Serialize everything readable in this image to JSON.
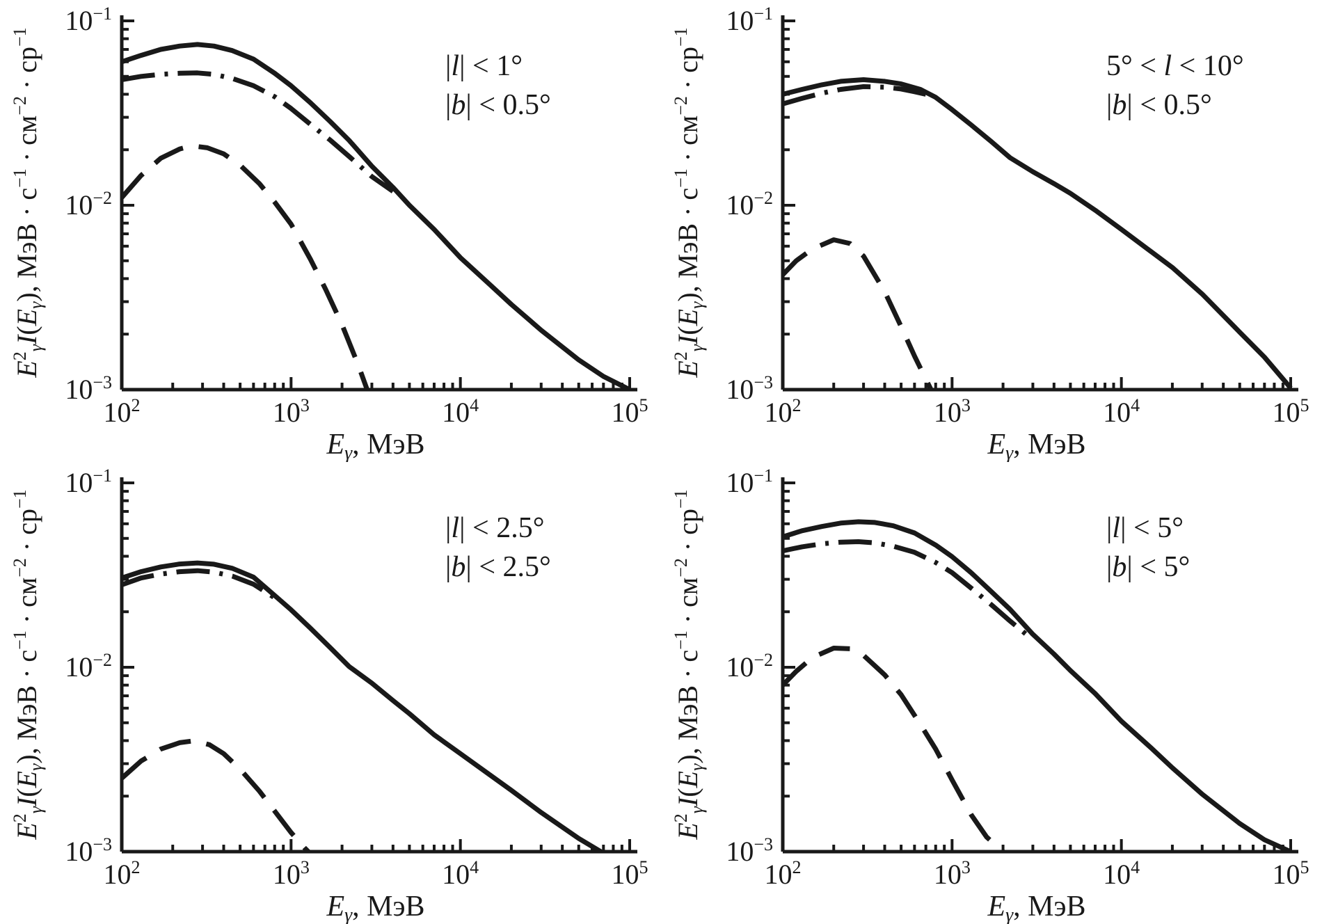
{
  "figure": {
    "background": "#ffffff",
    "line_color": "#191919",
    "xlabel_text": "Eγ, МэВ",
    "ylabel_text": "Eγ²I(Eγ), МэВ · с⁻¹ · см⁻² · ср⁻¹",
    "xlabel_segments": [
      {
        "t": "E",
        "i": true
      },
      {
        "t": "γ",
        "i": true,
        "p": "sub"
      },
      {
        "t": ", МэВ"
      }
    ],
    "ylabel_segments": [
      {
        "t": "E",
        "i": true
      },
      {
        "t": "2",
        "p": "sup"
      },
      {
        "t": "γ",
        "i": true,
        "p": "sub"
      },
      {
        "t": "I",
        "i": true
      },
      {
        "t": "("
      },
      {
        "t": "E",
        "i": true
      },
      {
        "t": "γ",
        "i": true,
        "p": "sub"
      },
      {
        "t": "), МэВ · с"
      },
      {
        "t": "−1",
        "p": "sup"
      },
      {
        "t": " · см"
      },
      {
        "t": "−2",
        "p": "sup"
      },
      {
        "t": " · ср"
      },
      {
        "t": "−1",
        "p": "sup"
      }
    ],
    "x_ticks": [
      {
        "v": 100,
        "label_text": "10²",
        "label": [
          {
            "t": "10"
          },
          {
            "t": "2",
            "p": "sup"
          }
        ]
      },
      {
        "v": 1000,
        "label_text": "10³",
        "label": [
          {
            "t": "10"
          },
          {
            "t": "3",
            "p": "sup"
          }
        ]
      },
      {
        "v": 10000,
        "label_text": "10⁴",
        "label": [
          {
            "t": "10"
          },
          {
            "t": "4",
            "p": "sup"
          }
        ]
      },
      {
        "v": 100000,
        "label_text": "10⁵",
        "label": [
          {
            "t": "10"
          },
          {
            "t": "5",
            "p": "sup"
          }
        ]
      }
    ],
    "y_ticks": [
      {
        "v": 0.1,
        "label_text": "10⁻¹",
        "label": [
          {
            "t": "10"
          },
          {
            "t": "−1",
            "p": "sup"
          }
        ]
      },
      {
        "v": 0.01,
        "label_text": "10⁻²",
        "label": [
          {
            "t": "10"
          },
          {
            "t": "−2",
            "p": "sup"
          }
        ]
      },
      {
        "v": 0.001,
        "label_text": "10⁻³",
        "label": [
          {
            "t": "10"
          },
          {
            "t": "−3",
            "p": "sup"
          }
        ]
      }
    ]
  },
  "chart_data": [
    {
      "type": "line",
      "position": "top-left",
      "xscale": "log",
      "yscale": "log",
      "xlim": [
        100,
        100000
      ],
      "ylim": [
        0.001,
        0.1
      ],
      "xlabel": "Eγ, МэВ",
      "ylabel": "Eγ²I(Eγ), МэВ · с⁻¹ · см⁻² · ср⁻¹",
      "annotation_lines": [
        "|l| < 1°",
        "|b| < 0.5°"
      ],
      "annotation_segments": [
        [
          {
            "t": "|"
          },
          {
            "t": "l",
            "i": true
          },
          {
            "t": "| < 1°"
          }
        ],
        [
          {
            "t": "|"
          },
          {
            "t": "b",
            "i": true
          },
          {
            "t": "| < 0.5°"
          }
        ]
      ],
      "series": [
        {
          "name": "solid curve",
          "style": "solid",
          "x": [
            100,
            130,
            170,
            220,
            280,
            350,
            450,
            600,
            800,
            1000,
            1300,
            1700,
            2200,
            3000,
            4000,
            5000,
            7000,
            10000,
            15000,
            20000,
            30000,
            50000,
            70000,
            100000
          ],
          "y": [
            0.06,
            0.065,
            0.07,
            0.073,
            0.0745,
            0.073,
            0.069,
            0.062,
            0.052,
            0.0445,
            0.036,
            0.0285,
            0.0225,
            0.0163,
            0.0125,
            0.01,
            0.0074,
            0.0052,
            0.0037,
            0.0029,
            0.0021,
            0.00145,
            0.00118,
            0.001
          ]
        },
        {
          "name": "dash-dot curve",
          "style": "dash-dot",
          "x": [
            100,
            130,
            170,
            220,
            280,
            350,
            450,
            600,
            800,
            1000,
            1300,
            1700,
            2200,
            3000,
            4000
          ],
          "y": [
            0.048,
            0.05,
            0.0513,
            0.052,
            0.0522,
            0.0513,
            0.0487,
            0.0445,
            0.0388,
            0.0335,
            0.0275,
            0.0226,
            0.0184,
            0.0143,
            0.0119
          ]
        },
        {
          "name": "dashed curve",
          "style": "dashed",
          "x": [
            100,
            130,
            170,
            220,
            260,
            320,
            400,
            500,
            650,
            800,
            1000,
            1300,
            1600,
            2000,
            2500,
            3000
          ],
          "y": [
            0.011,
            0.0145,
            0.018,
            0.0202,
            0.021,
            0.0205,
            0.019,
            0.0165,
            0.0131,
            0.0104,
            0.0079,
            0.0051,
            0.0035,
            0.00225,
            0.00135,
            0.00085
          ]
        }
      ]
    },
    {
      "type": "line",
      "position": "top-right",
      "xscale": "log",
      "yscale": "log",
      "xlim": [
        100,
        100000
      ],
      "ylim": [
        0.001,
        0.1
      ],
      "xlabel": "Eγ, МэВ",
      "ylabel": "Eγ²I(Eγ), МэВ · с⁻¹ · см⁻² · ср⁻¹",
      "annotation_lines": [
        "5° < l < 10°",
        "|b| < 0.5°"
      ],
      "annotation_segments": [
        [
          {
            "t": "5° < "
          },
          {
            "t": "l",
            "i": true
          },
          {
            "t": " < 10°"
          }
        ],
        [
          {
            "t": "|"
          },
          {
            "t": "b",
            "i": true
          },
          {
            "t": "| < 0.5°"
          }
        ]
      ],
      "series": [
        {
          "name": "solid curve",
          "style": "solid",
          "x": [
            100,
            130,
            170,
            220,
            300,
            400,
            500,
            650,
            800,
            1000,
            1300,
            1700,
            2200,
            3000,
            4000,
            5000,
            7000,
            10000,
            15000,
            20000,
            30000,
            50000,
            70000,
            100000
          ],
          "y": [
            0.04,
            0.0425,
            0.045,
            0.047,
            0.048,
            0.047,
            0.0455,
            0.0425,
            0.0385,
            0.033,
            0.0272,
            0.0222,
            0.0181,
            0.0152,
            0.0131,
            0.0116,
            0.0094,
            0.0074,
            0.0056,
            0.0046,
            0.0033,
            0.00205,
            0.0015,
            0.00102
          ]
        },
        {
          "name": "dash-dot curve",
          "style": "dash-dot",
          "x": [
            100,
            130,
            170,
            220,
            300,
            400,
            500,
            600,
            700
          ],
          "y": [
            0.0355,
            0.038,
            0.0405,
            0.0425,
            0.044,
            0.0437,
            0.0427,
            0.0413,
            0.04
          ]
        },
        {
          "name": "dashed curve",
          "style": "dashed",
          "x": [
            100,
            120,
            150,
            200,
            250,
            300,
            400,
            500,
            600,
            700,
            820
          ],
          "y": [
            0.0042,
            0.005,
            0.0058,
            0.0065,
            0.0062,
            0.0053,
            0.0034,
            0.0022,
            0.00152,
            0.00114,
            0.00085
          ]
        }
      ]
    },
    {
      "type": "line",
      "position": "bottom-left",
      "xscale": "log",
      "yscale": "log",
      "xlim": [
        100,
        100000
      ],
      "ylim": [
        0.001,
        0.1
      ],
      "xlabel": "Eγ, МэВ",
      "ylabel": "Eγ²I(Eγ), МэВ · с⁻¹ · см⁻² · ср⁻¹",
      "annotation_lines": [
        "|l| < 2.5°",
        "|b| < 2.5°"
      ],
      "annotation_segments": [
        [
          {
            "t": "|"
          },
          {
            "t": "l",
            "i": true
          },
          {
            "t": "| < 2.5°"
          }
        ],
        [
          {
            "t": "|"
          },
          {
            "t": "b",
            "i": true
          },
          {
            "t": "| < 2.5°"
          }
        ]
      ],
      "series": [
        {
          "name": "solid curve",
          "style": "solid",
          "x": [
            100,
            130,
            170,
            220,
            280,
            350,
            450,
            600,
            800,
            1000,
            1300,
            1700,
            2200,
            3000,
            4000,
            5000,
            7000,
            10000,
            15000,
            20000,
            30000,
            50000,
            70000
          ],
          "y": [
            0.0305,
            0.033,
            0.035,
            0.0363,
            0.0368,
            0.0362,
            0.0344,
            0.0308,
            0.0245,
            0.0205,
            0.0163,
            0.0128,
            0.0101,
            0.0082,
            0.0066,
            0.0056,
            0.0043,
            0.0034,
            0.0026,
            0.00215,
            0.00163,
            0.00118,
            0.00098
          ]
        },
        {
          "name": "dash-dot curve",
          "style": "dash-dot",
          "x": [
            100,
            130,
            170,
            220,
            280,
            350,
            450,
            600,
            800
          ],
          "y": [
            0.028,
            0.0305,
            0.032,
            0.033,
            0.0334,
            0.0328,
            0.0312,
            0.0282,
            0.0238
          ]
        },
        {
          "name": "dashed curve",
          "style": "dashed",
          "x": [
            100,
            130,
            170,
            220,
            270,
            330,
            400,
            500,
            650,
            800,
            1000,
            1200,
            1450
          ],
          "y": [
            0.0025,
            0.0031,
            0.0036,
            0.0039,
            0.004,
            0.0038,
            0.0034,
            0.0028,
            0.00213,
            0.00166,
            0.00127,
            0.00105,
            0.00088
          ]
        }
      ]
    },
    {
      "type": "line",
      "position": "bottom-right",
      "xscale": "log",
      "yscale": "log",
      "xlim": [
        100,
        100000
      ],
      "ylim": [
        0.001,
        0.1
      ],
      "xlabel": "Eγ, МэВ",
      "ylabel": "Eγ²I(Eγ), МэВ · с⁻¹ · см⁻² · ср⁻¹",
      "annotation_lines": [
        "|l| < 5°",
        "|b| < 5°"
      ],
      "annotation_segments": [
        [
          {
            "t": "|"
          },
          {
            "t": "l",
            "i": true
          },
          {
            "t": "| < 5°"
          }
        ],
        [
          {
            "t": "|"
          },
          {
            "t": "b",
            "i": true
          },
          {
            "t": "| < 5°"
          }
        ]
      ],
      "series": [
        {
          "name": "solid curve",
          "style": "solid",
          "x": [
            100,
            130,
            170,
            220,
            280,
            350,
            450,
            600,
            800,
            1000,
            1300,
            1700,
            2200,
            3000,
            4000,
            5000,
            7000,
            10000,
            15000,
            20000,
            30000,
            50000,
            70000,
            100000
          ],
          "y": [
            0.051,
            0.055,
            0.058,
            0.0605,
            0.0615,
            0.061,
            0.0585,
            0.0535,
            0.046,
            0.0398,
            0.0325,
            0.0258,
            0.0206,
            0.0151,
            0.0118,
            0.0096,
            0.0072,
            0.0051,
            0.00365,
            0.00285,
            0.00205,
            0.00142,
            0.00116,
            0.001
          ]
        },
        {
          "name": "dash-dot curve",
          "style": "dash-dot",
          "x": [
            100,
            130,
            170,
            220,
            280,
            350,
            450,
            600,
            800,
            1000,
            1300,
            1700,
            2200,
            3000
          ],
          "y": [
            0.0428,
            0.045,
            0.0467,
            0.0477,
            0.048,
            0.0473,
            0.0453,
            0.042,
            0.037,
            0.0326,
            0.0268,
            0.0219,
            0.0178,
            0.0141
          ]
        },
        {
          "name": "dashed curve",
          "style": "dashed",
          "x": [
            100,
            120,
            150,
            200,
            250,
            300,
            400,
            500,
            650,
            800,
            1000,
            1300,
            1600,
            2000,
            2400
          ],
          "y": [
            0.008,
            0.0095,
            0.0113,
            0.0127,
            0.0126,
            0.0116,
            0.0091,
            0.0071,
            0.0049,
            0.0036,
            0.00245,
            0.00158,
            0.0012,
            0.001,
            0.00085
          ]
        }
      ]
    }
  ]
}
